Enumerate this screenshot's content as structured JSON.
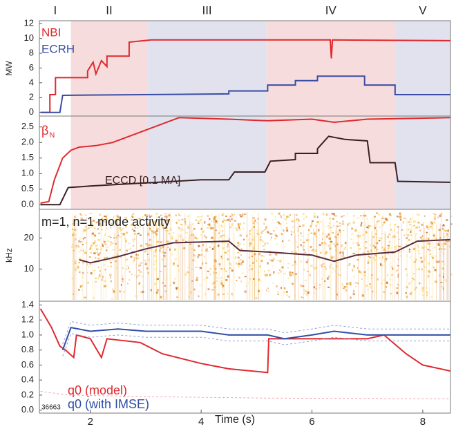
{
  "chart_data": [
    {
      "type": "line",
      "ylabel": "MW",
      "xlim": [
        1.08,
        8.5
      ],
      "ylim": [
        -0.5,
        12.4
      ],
      "yticks": [
        0,
        2,
        4,
        6,
        8,
        10,
        12
      ],
      "phases": [
        {
          "label": "I",
          "start": 1.08,
          "end": 1.65
        },
        {
          "label": "II",
          "start": 1.65,
          "end": 3.03,
          "color": "#f6dcdc"
        },
        {
          "label": "III",
          "start": 3.03,
          "end": 5.18,
          "color": "#e1e2ed"
        },
        {
          "label": "IV",
          "start": 5.18,
          "end": 7.5,
          "color": "#f6dcdc"
        },
        {
          "label": "V",
          "start": 7.5,
          "end": 8.5,
          "color": "#e1e2ed"
        }
      ],
      "series": [
        {
          "name": "NBI",
          "color": "#e0282e",
          "x": [
            1.1,
            1.27,
            1.27,
            1.37,
            1.37,
            1.95,
            1.95,
            2.05,
            2.1,
            2.2,
            2.3,
            2.3,
            2.7,
            2.7,
            3.1,
            6.33,
            6.35,
            6.37,
            8.5
          ],
          "values": [
            0,
            0,
            2.4,
            2.4,
            4.7,
            4.7,
            5.6,
            6.8,
            5.2,
            7.0,
            6.2,
            7.6,
            7.6,
            9.5,
            9.8,
            9.8,
            7.3,
            9.8,
            9.7
          ]
        },
        {
          "name": "ECRH",
          "color": "#3a4ca5",
          "x": [
            1.1,
            1.45,
            1.5,
            4.5,
            4.5,
            5.2,
            5.2,
            5.7,
            5.7,
            6.1,
            6.1,
            6.95,
            6.95,
            7.5,
            7.5,
            8.5
          ],
          "values": [
            0,
            0,
            2.3,
            2.5,
            2.9,
            2.9,
            3.7,
            3.7,
            4.3,
            4.3,
            4.9,
            4.9,
            3.7,
            3.7,
            2.4,
            2.4
          ]
        }
      ]
    },
    {
      "type": "line",
      "xlim": [
        1.08,
        8.5
      ],
      "ylim": [
        -0.15,
        2.85
      ],
      "yticks": [
        {
          "value": 0,
          "label": "0.0"
        },
        0.5,
        {
          "value": 1,
          "label": "1.0"
        },
        1.5,
        {
          "value": 2,
          "label": "2.0"
        },
        2.5
      ],
      "series": [
        {
          "name": "β",
          "subscript": "N",
          "color": "#e0282e",
          "x": [
            1.1,
            1.25,
            1.35,
            1.5,
            1.65,
            1.8,
            2.1,
            2.4,
            2.7,
            3.0,
            3.3,
            3.6,
            4.5,
            5.2,
            6.0,
            6.4,
            7.0,
            8.5
          ],
          "values": [
            0.05,
            0.1,
            0.8,
            1.5,
            1.75,
            1.85,
            1.9,
            2.0,
            2.2,
            2.4,
            2.6,
            2.8,
            2.75,
            2.7,
            2.75,
            2.65,
            2.75,
            2.8
          ]
        },
        {
          "name": "ECCD [0.1 MA]",
          "color": "#3a1f22",
          "x": [
            1.1,
            1.45,
            1.6,
            2.0,
            3.0,
            4.0,
            4.5,
            4.6,
            5.15,
            5.25,
            5.7,
            5.7,
            6.1,
            6.1,
            6.3,
            6.6,
            7.0,
            7.05,
            7.5,
            7.55,
            8.5
          ],
          "values": [
            0,
            0,
            0.55,
            0.6,
            0.7,
            0.8,
            0.8,
            1.05,
            1.05,
            1.4,
            1.45,
            1.65,
            1.65,
            1.8,
            2.2,
            2.1,
            2.05,
            1.35,
            1.35,
            0.75,
            0.72
          ]
        }
      ]
    },
    {
      "type": "spectrogram",
      "ylabel": "kHz",
      "annotation": "m=1, n=1 mode activity",
      "xlim": [
        1.08,
        8.5
      ],
      "ylim": [
        -0.4,
        29.3
      ],
      "yticks": [
        10,
        20
      ],
      "series": [
        {
          "color": "#5a2a3a",
          "x": [
            1.8,
            2.0,
            2.5,
            3.0,
            3.5,
            4.5,
            4.7,
            5.2,
            6.0,
            6.4,
            6.8,
            7.5,
            7.9,
            8.5
          ],
          "values": [
            13,
            12,
            14,
            16.5,
            18.5,
            19,
            16,
            15.5,
            14.5,
            12.5,
            14.5,
            15.5,
            19,
            19.5
          ]
        }
      ]
    },
    {
      "type": "line",
      "xlabel": "Time (s)",
      "annotation": "36663",
      "xlim": [
        1.08,
        8.5
      ],
      "ylim": [
        -0.04,
        1.45
      ],
      "xticks": [
        2,
        4,
        6,
        8
      ],
      "yticks": [
        {
          "value": 0,
          "label": "0.0"
        },
        0.2,
        0.4,
        0.6,
        0.8,
        {
          "value": 1,
          "label": "1.0"
        },
        1.2,
        1.4
      ],
      "series": [
        {
          "name": "q0 (model)",
          "color": "#e0282e",
          "x": [
            1.1,
            1.3,
            1.45,
            1.55,
            1.7,
            1.75,
            2.0,
            2.2,
            2.3,
            2.9,
            3.3,
            4.0,
            4.5,
            5.2,
            5.22,
            7.0,
            7.3,
            7.7,
            8.0,
            8.5
          ],
          "values": [
            1.35,
            1.1,
            0.85,
            0.8,
            0.7,
            1.0,
            0.95,
            0.7,
            0.95,
            0.9,
            0.75,
            0.62,
            0.55,
            0.5,
            0.95,
            0.95,
            1.0,
            0.75,
            0.6,
            0.52
          ]
        },
        {
          "name": "q0 (with IMSE)",
          "color": "#2f4fa8",
          "x": [
            1.5,
            1.65,
            2.0,
            2.5,
            3.0,
            4.0,
            4.5,
            5.2,
            5.5,
            6.0,
            6.4,
            7.0,
            8.5
          ],
          "values": [
            0.8,
            1.1,
            1.05,
            1.08,
            1.05,
            1.05,
            1.0,
            1.0,
            0.95,
            1.0,
            1.05,
            1.0,
            1.0
          ]
        },
        {
          "color": "#8fa0d8",
          "dash": true,
          "x": [
            1.5,
            1.65,
            2.0,
            2.5,
            3.0,
            4.0,
            4.5,
            5.2,
            5.5,
            6.0,
            6.4,
            7.0,
            8.5
          ],
          "values": [
            0.88,
            1.18,
            1.13,
            1.16,
            1.13,
            1.13,
            1.08,
            1.08,
            1.03,
            1.08,
            1.13,
            1.08,
            1.08
          ]
        },
        {
          "color": "#8fa0d8",
          "dash": true,
          "x": [
            1.5,
            1.65,
            2.0,
            2.5,
            3.0,
            4.0,
            4.5,
            5.2,
            5.5,
            6.0,
            6.4,
            7.0,
            8.5
          ],
          "values": [
            0.72,
            1.02,
            0.97,
            1.0,
            0.97,
            0.97,
            0.92,
            0.92,
            0.87,
            0.92,
            0.97,
            0.92,
            0.92
          ]
        },
        {
          "color": "#f0a0a8",
          "dash": true,
          "x": [
            1.1,
            1.6,
            3.0,
            5.2,
            8.5
          ],
          "values": [
            0.25,
            0.2,
            0.18,
            0.16,
            0.15
          ]
        }
      ]
    }
  ]
}
